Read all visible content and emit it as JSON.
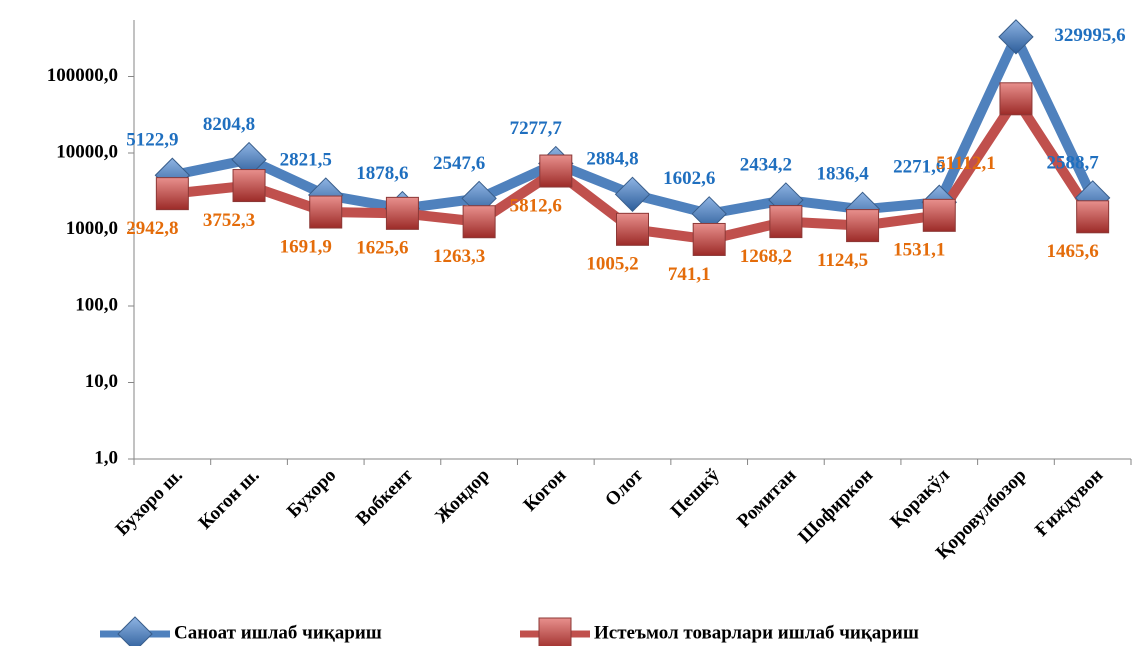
{
  "chart_data": {
    "type": "line",
    "log_scale": true,
    "categories": [
      "Бухоро ш.",
      "Когон ш.",
      "Бухоро",
      "Вобкент",
      "Жондор",
      "Когон",
      "Олот",
      "Пешкў",
      "Ромитан",
      "Шофиркон",
      "Қоракўл",
      "Қоровулбозор",
      "Ғиждувон"
    ],
    "series": [
      {
        "name": "Саноат ишлаб чиқариш",
        "color": "#4f81bd",
        "label_color": "#1f6fbf",
        "marker": "diamond",
        "values": [
          5122.9,
          8204.8,
          2821.5,
          1878.6,
          2547.6,
          7277.7,
          2884.8,
          1602.6,
          2434.2,
          1836.4,
          2271.6,
          329995.6,
          2588.7
        ],
        "value_labels": [
          "5122,9",
          "8204,8",
          "2821,5",
          "1878,6",
          "2547,6",
          "7277,7",
          "2884,8",
          "1602,6",
          "2434,2",
          "1836,4",
          "2271,6",
          "329995,6",
          "2588,7"
        ]
      },
      {
        "name": "Истеъмол товарлари ишлаб чиқариш",
        "color": "#c0504d",
        "label_color": "#e46c0a",
        "marker": "square",
        "values": [
          2942.8,
          3752.3,
          1691.9,
          1625.6,
          1263.3,
          5812.6,
          1005.2,
          741.1,
          1268.2,
          1124.5,
          1531.1,
          51112.1,
          1465.6
        ],
        "value_labels": [
          "2942,8",
          "3752,3",
          "1691,9",
          "1625,6",
          "1263,3",
          "5812,6",
          "1005,2",
          "741,1",
          "1268,2",
          "1124,5",
          "1531,1",
          "51112,1",
          "1465,6"
        ]
      }
    ],
    "ylim": [
      1,
      1000000
    ],
    "yticks": [
      {
        "value": 1,
        "label": "1,0"
      },
      {
        "value": 10,
        "label": "10,0"
      },
      {
        "value": 100,
        "label": "100,0"
      },
      {
        "value": 1000,
        "label": "1000,0"
      },
      {
        "value": 10000,
        "label": "10000,0"
      },
      {
        "value": 100000,
        "label": "100000,0"
      }
    ],
    "legend": "bottom"
  }
}
